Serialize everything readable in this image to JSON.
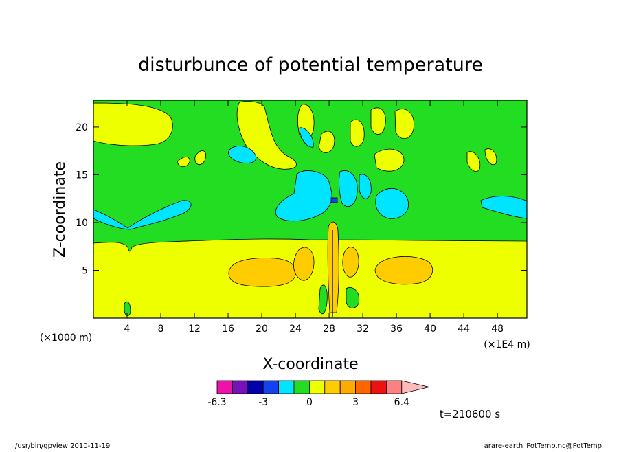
{
  "chart_data": {
    "type": "heatmap",
    "title": "disturbunce of potential temperature",
    "xlabel": "X-coordinate",
    "ylabel": "Z-coordinate",
    "x_unit_left": "(×1000 m)",
    "x_unit_right": "(×1E4 m)",
    "xlim": [
      0,
      51.5
    ],
    "ylim": [
      0,
      22.8
    ],
    "x_ticks": [
      "4",
      "8",
      "12",
      "16",
      "20",
      "24",
      "28",
      "32",
      "36",
      "40",
      "44",
      "48"
    ],
    "y_ticks": [
      "5",
      "10",
      "15",
      "20"
    ],
    "colorbar": {
      "colors": [
        "#ee11aa",
        "#7711bb",
        "#0000aa",
        "#1144ee",
        "#00e5ff",
        "#22dd22",
        "#eeff00",
        "#ffcc00",
        "#ffaa00",
        "#ff6600",
        "#ee1111",
        "#ff8080",
        "#ffbbbb"
      ],
      "labels": [
        "-6.3",
        "-3",
        "0",
        "3",
        "6.4"
      ]
    },
    "time_label": "t=210600 s"
  },
  "footer": {
    "left": "/usr/bin/gpview   2010-11-19",
    "right": "arare-earth_PotTemp.nc@PotTemp"
  }
}
